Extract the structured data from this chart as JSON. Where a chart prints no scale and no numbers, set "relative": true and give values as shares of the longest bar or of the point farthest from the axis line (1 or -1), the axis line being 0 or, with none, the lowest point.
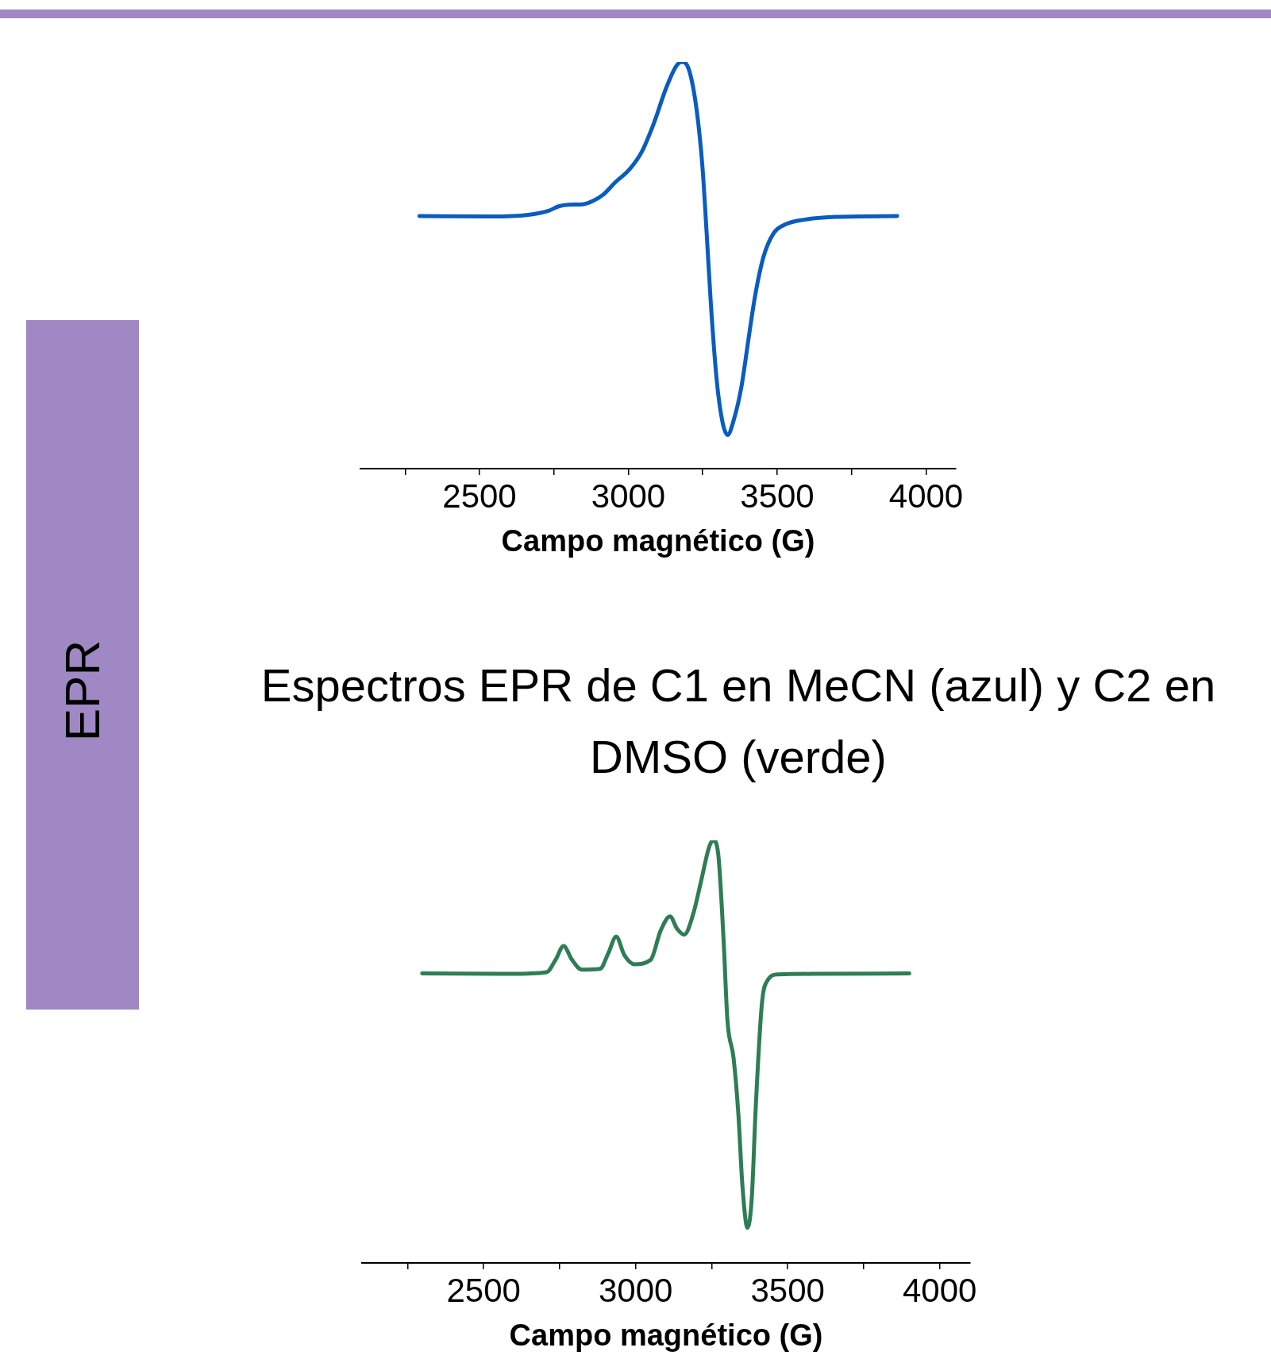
{
  "chart_data": [
    {
      "type": "line",
      "relative": true,
      "annotations": [
        "EPR",
        "Espectros EPR de C1 en MeCN (azul) y C2 en DMSO (verde)"
      ],
      "xlabel": "Campo magnético (G)",
      "xlim": [
        2100,
        4100
      ],
      "xticks": [
        {
          "value": 2250,
          "label": null
        },
        2500,
        {
          "value": 2750,
          "label": null
        },
        3000,
        {
          "value": 3250,
          "label": null
        },
        3500,
        {
          "value": 3750,
          "label": null
        },
        4000
      ],
      "marker": "none",
      "grid": false,
      "legend": false,
      "series": [
        {
          "color": "#0a5cbf",
          "x": [
            2298,
            2541,
            2663,
            2732,
            2766,
            2800,
            2847,
            2881,
            2916,
            2956,
            3004,
            3045,
            3086,
            3127,
            3161,
            3179,
            3202,
            3229,
            3249,
            3263,
            3277,
            3297,
            3317,
            3334,
            3351,
            3379,
            3406,
            3426,
            3454,
            3488,
            3529,
            3590,
            3699,
            3903
          ],
          "values": [
            0.621,
            0.62,
            0.624,
            0.634,
            0.645,
            0.649,
            0.65,
            0.658,
            0.674,
            0.704,
            0.736,
            0.779,
            0.85,
            0.936,
            0.99,
            1,
            0.984,
            0.884,
            0.741,
            0.579,
            0.407,
            0.216,
            0.112,
            0.083,
            0.112,
            0.198,
            0.331,
            0.426,
            0.521,
            0.579,
            0.601,
            0.612,
            0.619,
            0.621
          ]
        }
      ]
    },
    {
      "type": "line",
      "relative": true,
      "xlabel": "Campo magnético (G)",
      "xlim": [
        2100,
        4100
      ],
      "xticks": [
        {
          "value": 2250,
          "label": null
        },
        2500,
        {
          "value": 2750,
          "label": null
        },
        3000,
        {
          "value": 3250,
          "label": null
        },
        3500,
        {
          "value": 3750,
          "label": null
        },
        4000
      ],
      "marker": "none",
      "grid": false,
      "legend": false,
      "series": [
        {
          "color": "#2e7d55",
          "x": [
            2298,
            2590,
            2707,
            2737,
            2763,
            2790,
            2823,
            2883,
            2910,
            2936,
            2963,
            2996,
            3049,
            3082,
            3113,
            3136,
            3160,
            3189,
            3215,
            3242,
            3255,
            3271,
            3289,
            3302,
            3322,
            3338,
            3351,
            3368,
            3382,
            3395,
            3415,
            3435,
            3468,
            3588,
            3900
          ],
          "values": [
            0.685,
            0.684,
            0.688,
            0.718,
            0.75,
            0.718,
            0.694,
            0.696,
            0.733,
            0.772,
            0.728,
            0.707,
            0.717,
            0.786,
            0.82,
            0.791,
            0.777,
            0.825,
            0.903,
            0.985,
            1,
            0.971,
            0.767,
            0.573,
            0.485,
            0.35,
            0.184,
            0.083,
            0.155,
            0.369,
            0.612,
            0.67,
            0.683,
            0.684,
            0.685
          ]
        }
      ]
    }
  ]
}
